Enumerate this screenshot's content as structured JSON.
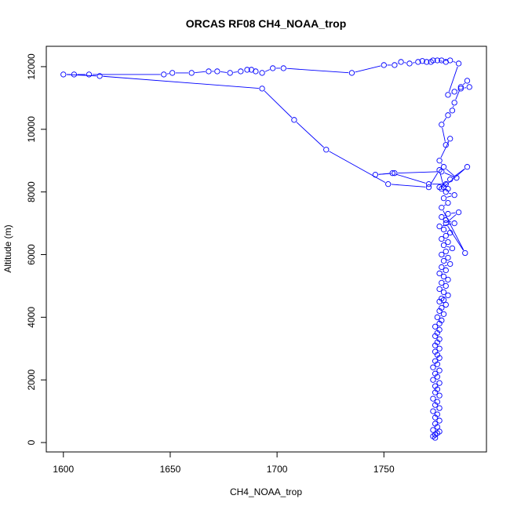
{
  "chart_data": {
    "type": "line",
    "title": "ORCAS RF08 CH4_NOAA_trop",
    "xlabel": "CH4_NOAA_trop",
    "ylabel": "Altitude (m)",
    "xlim": [
      1592,
      1798
    ],
    "ylim": [
      -300,
      12650
    ],
    "xticks": [
      1600,
      1650,
      1700,
      1750
    ],
    "yticks": [
      0,
      2000,
      4000,
      6000,
      8000,
      10000,
      12000
    ],
    "grid": false,
    "legend": "none",
    "series_color": "#0000ff",
    "markers": "open-circle",
    "series": [
      {
        "x": [
          1774,
          1773,
          1775,
          1774,
          1776,
          1773,
          1775,
          1774,
          1776,
          1774,
          1775,
          1773,
          1776,
          1774,
          1775,
          1773,
          1776,
          1774,
          1775,
          1774,
          1776,
          1773,
          1775,
          1774,
          1776,
          1773,
          1775,
          1774,
          1776,
          1775,
          1774,
          1776,
          1774,
          1775,
          1776,
          1774,
          1775,
          1776,
          1774,
          1776,
          1777,
          1775,
          1778,
          1776,
          1777,
          1779,
          1776,
          1778,
          1777,
          1780,
          1778,
          1776,
          1779,
          1777,
          1780,
          1778,
          1776,
          1779,
          1777,
          1781,
          1778,
          1780,
          1777,
          1779,
          1782,
          1778,
          1780,
          1777,
          1779,
          1781,
          1778,
          1776,
          1783,
          1779,
          1777,
          1780,
          1785,
          1779,
          1788,
          1777,
          1780,
          1778,
          1783,
          1779,
          1777,
          1789,
          1781,
          1776,
          1779,
          1771,
          1754,
          1746,
          1755,
          1777,
          1784,
          1778,
          1776,
          1781,
          1779,
          1777,
          1780,
          1782,
          1783,
          1786,
          1789,
          1790,
          1786,
          1783,
          1780,
          1785,
          1781,
          1777,
          1779,
          1775,
          1772,
          1773,
          1770,
          1768,
          1766,
          1762,
          1758,
          1755,
          1750,
          1735,
          1703,
          1698,
          1693,
          1690,
          1688,
          1686,
          1683,
          1678,
          1672,
          1668,
          1660,
          1651,
          1647,
          1612,
          1605,
          1600,
          1617,
          1693,
          1708,
          1723,
          1752,
          1771,
          1776,
          1778,
          1780
        ],
        "y": [
          150,
          200,
          300,
          250,
          350,
          400,
          500,
          600,
          700,
          800,
          900,
          1000,
          1100,
          1200,
          1300,
          1400,
          1500,
          1600,
          1700,
          1800,
          1900,
          2000,
          2100,
          2200,
          2300,
          2400,
          2500,
          2600,
          2700,
          2800,
          2900,
          3000,
          3100,
          3200,
          3300,
          3400,
          3500,
          3600,
          3700,
          3800,
          3900,
          4000,
          4100,
          4200,
          4300,
          4400,
          4500,
          4550,
          4600,
          4700,
          4800,
          4900,
          5000,
          5100,
          5200,
          5300,
          5400,
          5500,
          5600,
          5700,
          5800,
          5900,
          6000,
          6100,
          6200,
          6300,
          6400,
          6500,
          6600,
          6700,
          6800,
          6900,
          7000,
          7100,
          7200,
          7300,
          7350,
          7000,
          6050,
          7500,
          7650,
          7800,
          7900,
          8000,
          8100,
          8800,
          8400,
          8150,
          8250,
          8250,
          8600,
          8550,
          8600,
          8650,
          8450,
          8800,
          9000,
          9700,
          9500,
          10150,
          10450,
          10600,
          10850,
          11350,
          11550,
          11350,
          11300,
          11200,
          11100,
          12100,
          12200,
          12200,
          12150,
          12200,
          12150,
          12200,
          12150,
          12180,
          12150,
          12100,
          12150,
          12050,
          12050,
          11800,
          11950,
          11950,
          11800,
          11850,
          11900,
          11900,
          11850,
          11800,
          11850,
          11850,
          11800,
          11800,
          11750,
          11750,
          11750,
          11750,
          11700,
          11300,
          10300,
          9350,
          8250,
          8150,
          8700,
          8150,
          8100
        ]
      }
    ]
  }
}
